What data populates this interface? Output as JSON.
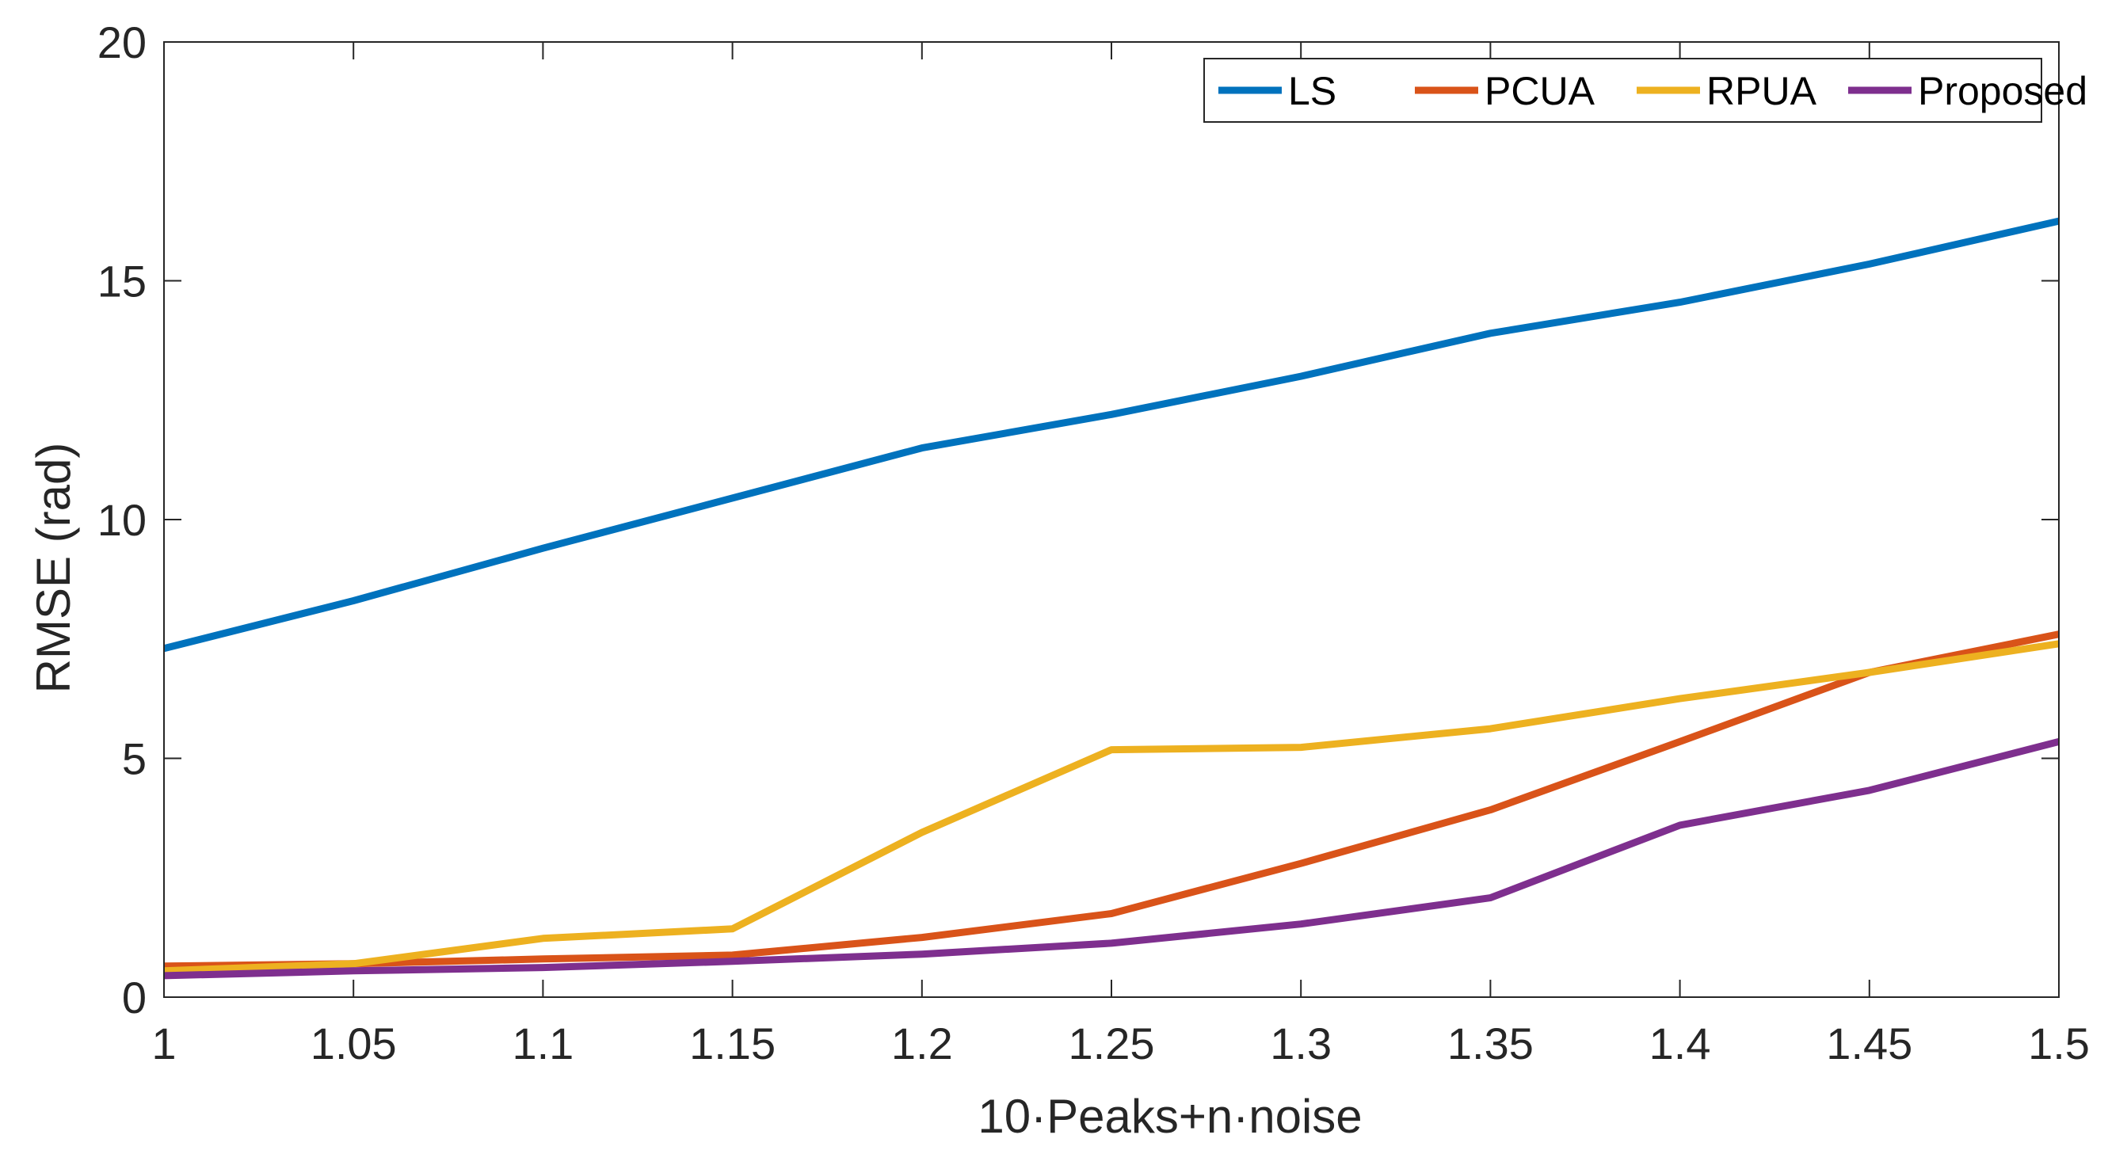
{
  "chart_data": {
    "type": "line",
    "title": "",
    "xlabel": "10·Peaks+n·noise",
    "ylabel": "RMSE (rad)",
    "xlim": [
      1,
      1.5
    ],
    "ylim": [
      0,
      20
    ],
    "xticks": [
      1,
      1.05,
      1.1,
      1.15,
      1.2,
      1.25,
      1.3,
      1.35,
      1.4,
      1.45,
      1.5
    ],
    "xtick_labels": [
      "1",
      "1.05",
      "1.1",
      "1.15",
      "1.2",
      "1.25",
      "1.3",
      "1.35",
      "1.4",
      "1.45",
      "1.5"
    ],
    "yticks": [
      0,
      5,
      10,
      15,
      20
    ],
    "ytick_labels": [
      "0",
      "5",
      "10",
      "15",
      "20"
    ],
    "grid": false,
    "legend_position": "top-right",
    "x": [
      1,
      1.05,
      1.1,
      1.15,
      1.2,
      1.25,
      1.3,
      1.35,
      1.4,
      1.45,
      1.5
    ],
    "series": [
      {
        "name": "LS",
        "color": "#0072BD",
        "values": [
          7.3,
          8.3,
          9.4,
          10.45,
          11.5,
          12.2,
          13.0,
          13.9,
          14.55,
          15.35,
          16.25
        ]
      },
      {
        "name": "PCUA",
        "color": "#D95319",
        "values": [
          0.65,
          0.7,
          0.8,
          0.88,
          1.25,
          1.75,
          2.8,
          3.92,
          5.35,
          6.8,
          7.6
        ]
      },
      {
        "name": "RPUA",
        "color": "#EDB120",
        "values": [
          0.55,
          0.7,
          1.23,
          1.43,
          3.45,
          5.18,
          5.23,
          5.62,
          6.25,
          6.8,
          7.4
        ]
      },
      {
        "name": "Proposed",
        "color": "#7E2F8E",
        "values": [
          0.45,
          0.55,
          0.62,
          0.75,
          0.9,
          1.13,
          1.53,
          2.08,
          3.6,
          4.33,
          5.35
        ]
      }
    ]
  }
}
